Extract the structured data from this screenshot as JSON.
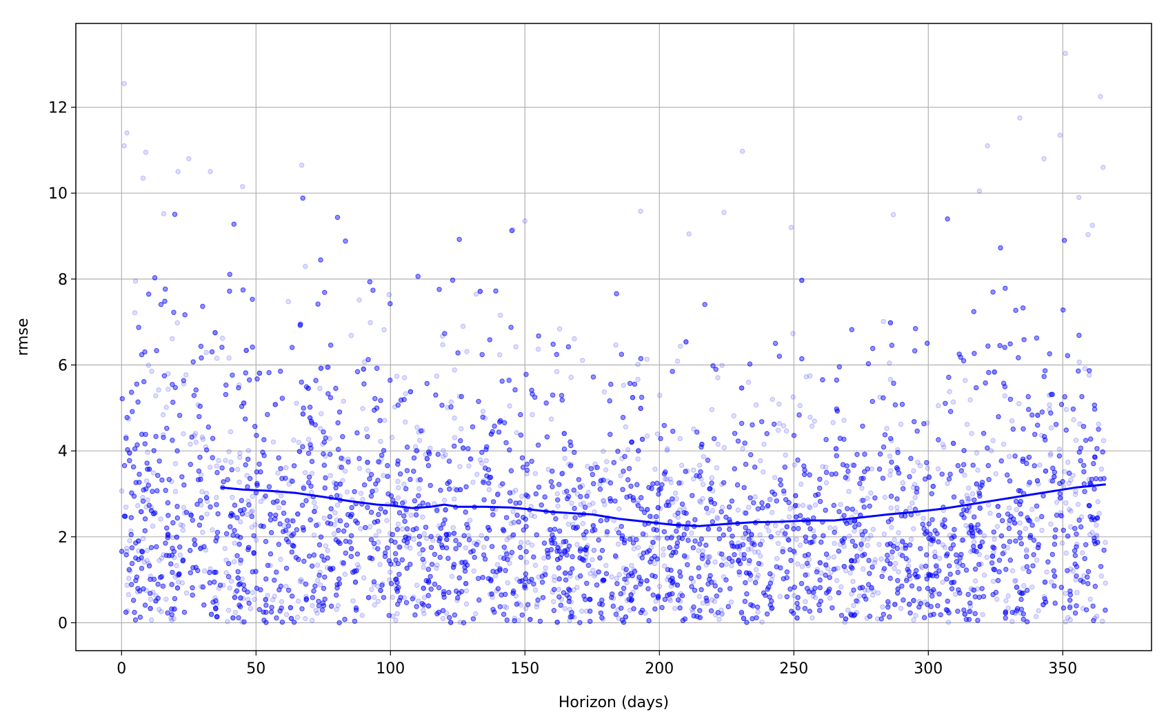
{
  "chart_data": {
    "type": "scatter",
    "title": "",
    "xlabel": "Horizon (days)",
    "ylabel": "rmse",
    "xlim": [
      -17,
      383
    ],
    "ylim": [
      -0.65,
      13.95
    ],
    "xticks": [
      0,
      50,
      100,
      150,
      200,
      250,
      300,
      350
    ],
    "yticks": [
      0,
      2,
      4,
      6,
      8,
      10,
      12
    ],
    "grid": true,
    "colors": {
      "points": "#0000ff",
      "line": "#0000ff",
      "grid": "#b0b0b0"
    },
    "scatter": {
      "x_range": [
        0,
        366
      ],
      "description_count": 16000,
      "outliers": [
        [
          1,
          12.55
        ],
        [
          1,
          11.1
        ],
        [
          2,
          11.4
        ],
        [
          9,
          10.95
        ],
        [
          8,
          10.35
        ],
        [
          21,
          10.5
        ],
        [
          25,
          10.8
        ],
        [
          33,
          10.5
        ],
        [
          45,
          10.15
        ],
        [
          67,
          10.65
        ],
        [
          150,
          9.35
        ],
        [
          211,
          9.05
        ],
        [
          224,
          9.55
        ],
        [
          249,
          9.2
        ],
        [
          319,
          10.05
        ],
        [
          322,
          11.1
        ],
        [
          334,
          11.75
        ],
        [
          343,
          10.8
        ],
        [
          349,
          11.35
        ],
        [
          351,
          13.25
        ],
        [
          356,
          9.9
        ],
        [
          364,
          12.25
        ],
        [
          365,
          10.6
        ],
        [
          361,
          9.25
        ],
        [
          287,
          9.5
        ]
      ]
    },
    "series": [
      {
        "type": "line",
        "x": [
          37,
          45,
          55,
          65,
          75,
          85,
          95,
          100,
          108,
          115,
          120,
          125,
          135,
          145,
          150,
          160,
          175,
          185,
          195,
          205,
          215,
          225,
          235,
          245,
          255,
          265,
          275,
          285,
          295,
          305,
          315,
          325,
          335,
          345,
          350,
          355,
          360,
          366
        ],
        "y": [
          3.15,
          3.1,
          3.07,
          3.02,
          2.93,
          2.83,
          2.75,
          2.73,
          2.67,
          2.7,
          2.75,
          2.7,
          2.7,
          2.68,
          2.65,
          2.58,
          2.52,
          2.42,
          2.35,
          2.28,
          2.25,
          2.3,
          2.34,
          2.35,
          2.38,
          2.38,
          2.45,
          2.52,
          2.58,
          2.65,
          2.75,
          2.85,
          2.95,
          3.05,
          3.1,
          3.15,
          3.18,
          3.22
        ]
      }
    ]
  }
}
